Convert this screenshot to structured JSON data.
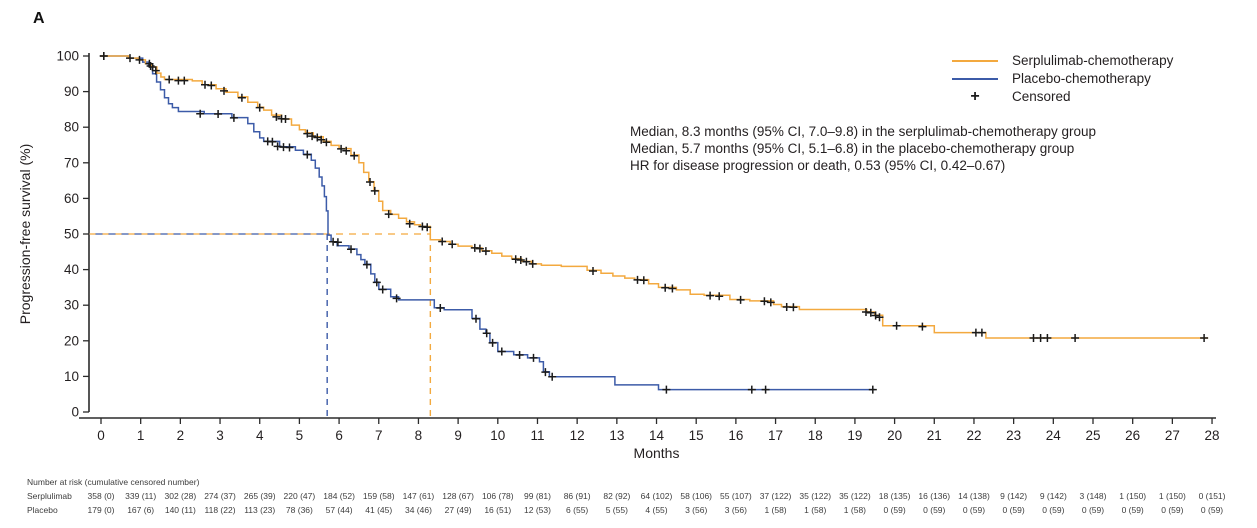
{
  "panel_label": "A",
  "colors": {
    "serplulimab": "#F3A93F",
    "placebo": "#3C5BA8",
    "censor": "#1a1a1a",
    "axis": "#2b2b2b"
  },
  "legend": {
    "serplulimab": "Serplulimab-chemotherapy",
    "placebo": "Placebo-chemotherapy",
    "censored": "Censored",
    "censor_marker": "+"
  },
  "annotation": {
    "line1": "Median, 8.3 months (95% CI, 7.0–9.8) in the serplulimab-chemotherapy group",
    "line2": "Median, 5.7 months (95% CI, 5.1–6.8) in the placebo-chemotherapy group",
    "line3": "HR for disease progression or death, 0.53 (95% CI, 0.42–0.67)"
  },
  "chart_data": {
    "type": "line",
    "subtype": "kaplan-meier-step",
    "title": "",
    "xlabel": "Months",
    "ylabel": "Progression-free survival (%)",
    "xlim": [
      0,
      28
    ],
    "ylim": [
      0,
      100
    ],
    "xticks": [
      0,
      1,
      2,
      3,
      4,
      5,
      6,
      7,
      8,
      9,
      10,
      11,
      12,
      13,
      14,
      15,
      16,
      17,
      18,
      19,
      20,
      21,
      22,
      23,
      24,
      25,
      26,
      27,
      28
    ],
    "yticks": [
      0,
      10,
      20,
      30,
      40,
      50,
      60,
      70,
      80,
      90,
      100
    ],
    "grid": false,
    "legend_position": "top-right",
    "medians": {
      "serplulimab_months": 8.3,
      "placebo_months": 5.7,
      "reference_pct": 50
    },
    "series": [
      {
        "name": "Placebo-chemotherapy",
        "color_key": "placebo",
        "end_month": 19.5,
        "steps": [
          [
            0,
            100
          ],
          [
            0.69,
            99.4
          ],
          [
            1.05,
            98.3
          ],
          [
            1.2,
            97.2
          ],
          [
            1.3,
            95.0
          ],
          [
            1.4,
            92.7
          ],
          [
            1.5,
            90.5
          ],
          [
            1.6,
            88.3
          ],
          [
            1.7,
            86.6
          ],
          [
            1.8,
            85.5
          ],
          [
            1.95,
            84.4
          ],
          [
            2.6,
            83.8
          ],
          [
            3.3,
            82.7
          ],
          [
            3.7,
            81.0
          ],
          [
            3.85,
            78.7
          ],
          [
            4.0,
            77.0
          ],
          [
            4.1,
            76.0
          ],
          [
            4.5,
            74.5
          ],
          [
            4.9,
            73.5
          ],
          [
            5.1,
            72.4
          ],
          [
            5.3,
            70.7
          ],
          [
            5.4,
            68.5
          ],
          [
            5.5,
            66.0
          ],
          [
            5.57,
            63.5
          ],
          [
            5.63,
            60.5
          ],
          [
            5.68,
            56.5
          ],
          [
            5.72,
            49.7
          ],
          [
            5.8,
            47.8
          ],
          [
            5.95,
            46.7
          ],
          [
            6.25,
            45.8
          ],
          [
            6.45,
            44.2
          ],
          [
            6.55,
            42.8
          ],
          [
            6.65,
            41.5
          ],
          [
            6.8,
            38.8
          ],
          [
            6.9,
            36.5
          ],
          [
            7.0,
            34.5
          ],
          [
            7.3,
            32.4
          ],
          [
            7.5,
            31.5
          ],
          [
            8.4,
            29.3
          ],
          [
            8.65,
            28.7
          ],
          [
            9.35,
            26.3
          ],
          [
            9.55,
            23.3
          ],
          [
            9.7,
            22.1
          ],
          [
            9.8,
            19.5
          ],
          [
            10.0,
            17.0
          ],
          [
            10.4,
            16.1
          ],
          [
            10.75,
            15.2
          ],
          [
            11.05,
            14.1
          ],
          [
            11.15,
            11.3
          ],
          [
            11.3,
            9.9
          ],
          [
            12.95,
            7.6
          ],
          [
            14.05,
            6.3
          ]
        ],
        "censors": [
          [
            0.07,
            100
          ],
          [
            1.25,
            97.2
          ],
          [
            2.5,
            83.8
          ],
          [
            2.95,
            83.7
          ],
          [
            3.35,
            82.6
          ],
          [
            4.2,
            76.0
          ],
          [
            4.32,
            75.9
          ],
          [
            4.45,
            74.6
          ],
          [
            4.6,
            74.4
          ],
          [
            4.75,
            74.3
          ],
          [
            5.2,
            72.3
          ],
          [
            5.85,
            47.8
          ],
          [
            5.97,
            47.7
          ],
          [
            6.3,
            45.7
          ],
          [
            6.7,
            41.4
          ],
          [
            6.95,
            36.4
          ],
          [
            7.1,
            34.4
          ],
          [
            7.45,
            31.9
          ],
          [
            8.55,
            29.2
          ],
          [
            9.45,
            26.2
          ],
          [
            9.72,
            22.1
          ],
          [
            9.87,
            19.4
          ],
          [
            10.1,
            17.0
          ],
          [
            10.55,
            16.0
          ],
          [
            10.9,
            15.2
          ],
          [
            11.2,
            11.2
          ],
          [
            11.37,
            9.9
          ],
          [
            14.25,
            6.3
          ],
          [
            16.4,
            6.3
          ],
          [
            16.75,
            6.3
          ],
          [
            19.45,
            6.3
          ]
        ]
      },
      {
        "name": "Serplulimab-chemotherapy",
        "color_key": "serplulimab",
        "end_month": 27.9,
        "steps": [
          [
            0,
            100
          ],
          [
            0.69,
            99.4
          ],
          [
            0.95,
            98.9
          ],
          [
            1.12,
            97.8
          ],
          [
            1.28,
            96.9
          ],
          [
            1.41,
            95.2
          ],
          [
            1.51,
            94.1
          ],
          [
            1.6,
            93.4
          ],
          [
            2.3,
            93.0
          ],
          [
            2.55,
            91.9
          ],
          [
            2.9,
            90.8
          ],
          [
            3.15,
            89.8
          ],
          [
            3.45,
            88.5
          ],
          [
            3.7,
            87.0
          ],
          [
            3.95,
            85.6
          ],
          [
            4.1,
            84.8
          ],
          [
            4.3,
            83.4
          ],
          [
            4.55,
            82.3
          ],
          [
            4.8,
            80.6
          ],
          [
            5.0,
            79.3
          ],
          [
            5.15,
            78.4
          ],
          [
            5.35,
            77.3
          ],
          [
            5.6,
            76.0
          ],
          [
            5.8,
            74.9
          ],
          [
            6.0,
            74.0
          ],
          [
            6.3,
            72.2
          ],
          [
            6.5,
            70.0
          ],
          [
            6.62,
            67.3
          ],
          [
            6.75,
            64.7
          ],
          [
            6.88,
            62.2
          ],
          [
            7.0,
            59.2
          ],
          [
            7.1,
            56.6
          ],
          [
            7.3,
            55.5
          ],
          [
            7.5,
            54.4
          ],
          [
            7.7,
            53.4
          ],
          [
            7.9,
            52.6
          ],
          [
            8.05,
            52.1
          ],
          [
            8.3,
            48.4
          ],
          [
            8.55,
            47.9
          ],
          [
            8.8,
            47.1
          ],
          [
            9.0,
            46.6
          ],
          [
            9.35,
            46.1
          ],
          [
            9.6,
            45.3
          ],
          [
            9.85,
            44.6
          ],
          [
            10.1,
            43.8
          ],
          [
            10.35,
            43.1
          ],
          [
            10.6,
            42.3
          ],
          [
            10.85,
            41.6
          ],
          [
            11.1,
            41.2
          ],
          [
            11.6,
            40.9
          ],
          [
            12.25,
            39.8
          ],
          [
            12.6,
            39.0
          ],
          [
            12.9,
            38.2
          ],
          [
            13.2,
            37.6
          ],
          [
            13.45,
            37.2
          ],
          [
            13.8,
            36.0
          ],
          [
            14.05,
            35.0
          ],
          [
            14.5,
            34.3
          ],
          [
            14.85,
            33.1
          ],
          [
            15.2,
            32.8
          ],
          [
            15.85,
            31.6
          ],
          [
            16.35,
            31.2
          ],
          [
            16.95,
            30.2
          ],
          [
            17.15,
            29.6
          ],
          [
            17.6,
            28.8
          ],
          [
            19.3,
            28.1
          ],
          [
            19.5,
            27.2
          ],
          [
            19.7,
            24.2
          ],
          [
            21.0,
            22.3
          ],
          [
            22.3,
            20.8
          ]
        ],
        "censors": [
          [
            0.07,
            100
          ],
          [
            0.73,
            99.4
          ],
          [
            0.97,
            98.9
          ],
          [
            1.22,
            97.8
          ],
          [
            1.3,
            96.9
          ],
          [
            1.38,
            95.9
          ],
          [
            1.72,
            93.4
          ],
          [
            1.95,
            93.1
          ],
          [
            2.1,
            93.1
          ],
          [
            2.62,
            91.9
          ],
          [
            2.78,
            91.7
          ],
          [
            3.1,
            90.2
          ],
          [
            3.55,
            88.3
          ],
          [
            4.0,
            85.5
          ],
          [
            4.42,
            82.9
          ],
          [
            4.55,
            82.4
          ],
          [
            4.65,
            82.3
          ],
          [
            5.2,
            78.2
          ],
          [
            5.32,
            77.5
          ],
          [
            5.45,
            77.1
          ],
          [
            5.55,
            76.5
          ],
          [
            5.68,
            75.8
          ],
          [
            6.05,
            73.9
          ],
          [
            6.18,
            73.4
          ],
          [
            6.38,
            72.0
          ],
          [
            6.78,
            64.6
          ],
          [
            6.9,
            62.1
          ],
          [
            7.25,
            55.6
          ],
          [
            7.78,
            52.9
          ],
          [
            8.1,
            52.1
          ],
          [
            8.22,
            51.9
          ],
          [
            8.6,
            47.9
          ],
          [
            8.85,
            47.1
          ],
          [
            9.42,
            46.1
          ],
          [
            9.55,
            45.9
          ],
          [
            9.7,
            45.2
          ],
          [
            10.45,
            42.9
          ],
          [
            10.58,
            42.7
          ],
          [
            10.72,
            42.2
          ],
          [
            10.88,
            41.6
          ],
          [
            12.4,
            39.6
          ],
          [
            13.52,
            37.1
          ],
          [
            13.68,
            37.0
          ],
          [
            14.22,
            34.9
          ],
          [
            14.4,
            34.7
          ],
          [
            15.35,
            32.7
          ],
          [
            15.58,
            32.5
          ],
          [
            16.12,
            31.5
          ],
          [
            16.72,
            31.1
          ],
          [
            16.88,
            30.8
          ],
          [
            17.28,
            29.5
          ],
          [
            17.45,
            29.4
          ],
          [
            19.28,
            28.1
          ],
          [
            19.4,
            27.9
          ],
          [
            19.52,
            27.1
          ],
          [
            19.62,
            26.6
          ],
          [
            20.05,
            24.2
          ],
          [
            20.7,
            24.0
          ],
          [
            22.05,
            22.3
          ],
          [
            22.2,
            22.3
          ],
          [
            23.5,
            20.8
          ],
          [
            23.68,
            20.8
          ],
          [
            23.85,
            20.8
          ],
          [
            24.55,
            20.8
          ],
          [
            27.8,
            20.8
          ]
        ]
      }
    ]
  },
  "risk_table": {
    "header": "Number at risk (cumulative censored number)",
    "rows": [
      {
        "label": "Serplulimab",
        "values": [
          "358 (0)",
          "339 (11)",
          "302 (28)",
          "274 (37)",
          "265 (39)",
          "220 (47)",
          "184 (52)",
          "159 (58)",
          "147 (61)",
          "128 (67)",
          "106 (78)",
          "99 (81)",
          "86 (91)",
          "82 (92)",
          "64 (102)",
          "58 (106)",
          "55 (107)",
          "37 (122)",
          "35 (122)",
          "35 (122)",
          "18 (135)",
          "16 (136)",
          "14 (138)",
          "9 (142)",
          "9 (142)",
          "3 (148)",
          "1 (150)",
          "1 (150)",
          "0 (151)"
        ]
      },
      {
        "label": "Placebo",
        "values": [
          "179 (0)",
          "167 (6)",
          "140 (11)",
          "118 (22)",
          "113 (23)",
          "78 (36)",
          "57 (44)",
          "41 (45)",
          "34 (46)",
          "27 (49)",
          "16 (51)",
          "12 (53)",
          "6 (55)",
          "5 (55)",
          "4 (55)",
          "3 (56)",
          "3 (56)",
          "1 (58)",
          "1 (58)",
          "1 (58)",
          "0 (59)",
          "0 (59)",
          "0 (59)",
          "0 (59)",
          "0 (59)",
          "0 (59)",
          "0 (59)",
          "0 (59)",
          "0 (59)"
        ]
      }
    ]
  }
}
